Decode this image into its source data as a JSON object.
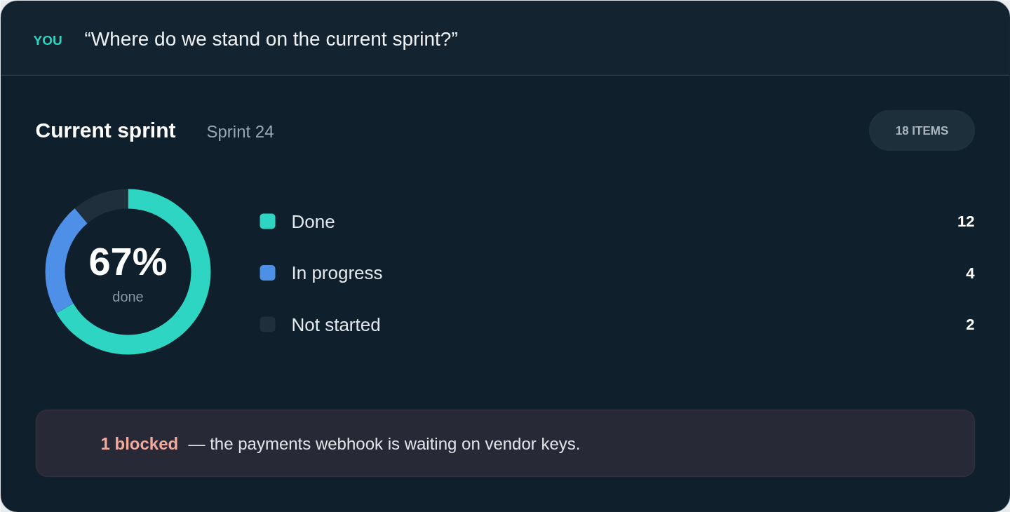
{
  "chart_data": {
    "type": "donut",
    "title": "Current sprint",
    "subtitle": "Sprint 24",
    "categories": [
      "Done",
      "In progress",
      "Not started"
    ],
    "values": [
      12,
      4,
      2
    ],
    "colors": [
      "#2dd5c2",
      "#4e8fe8",
      "#1f303c"
    ],
    "data_labels": true,
    "legend": "right",
    "annotations": [
      "YOU",
      "“Where do we stand on the current sprint?”",
      "18 ITEMS",
      "67%",
      "done",
      "1 blocked",
      "— the payments webhook is waiting on vendor keys."
    ]
  }
}
